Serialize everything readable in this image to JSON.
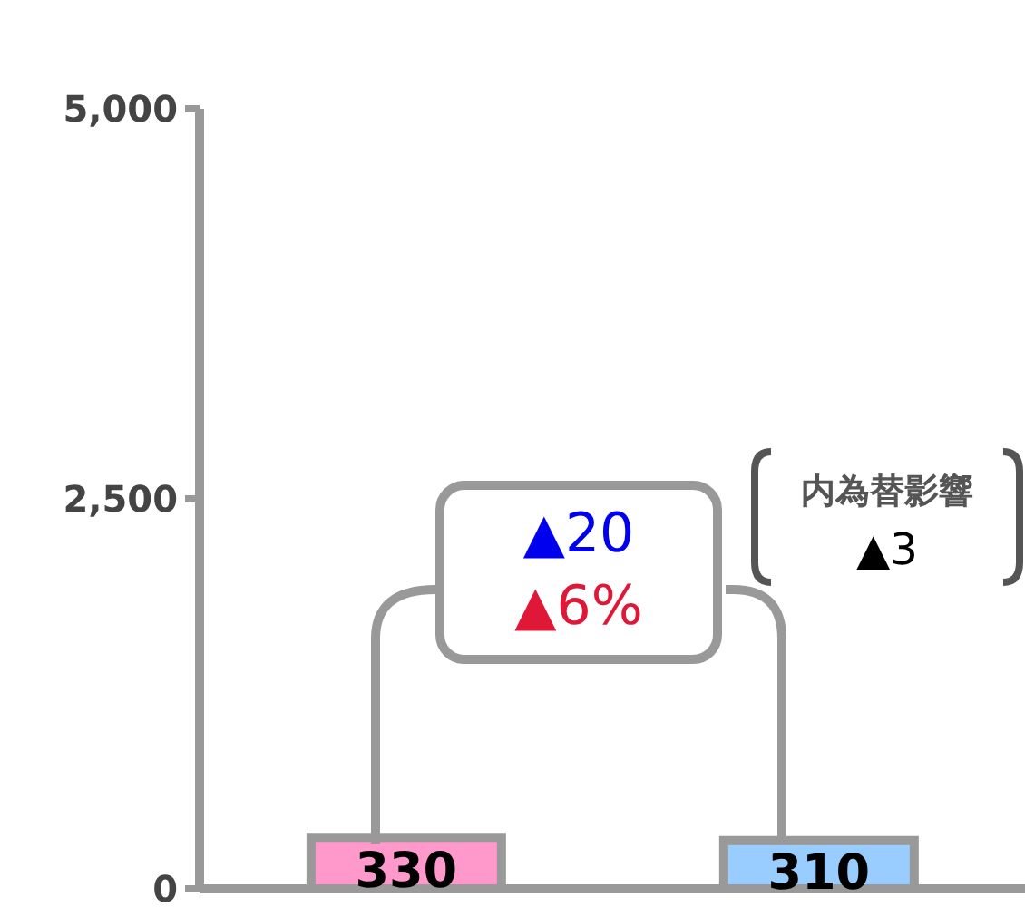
{
  "chart_data": {
    "type": "bar",
    "categories": [
      null,
      null
    ],
    "values": [
      330,
      310
    ],
    "colors": [
      "#ff99cc",
      "#99ccff"
    ],
    "ylim": [
      0,
      5000
    ],
    "yticks": [
      {
        "value": 0,
        "label": "0"
      },
      {
        "value": 2500,
        "label": "2,500"
      },
      {
        "value": 5000,
        "label": "5,000"
      }
    ],
    "tick_labels": "y",
    "data_labels": true,
    "grid": false,
    "annotations": [
      "▲20",
      "▲6%",
      "内為替影響",
      "▲3"
    ]
  }
}
